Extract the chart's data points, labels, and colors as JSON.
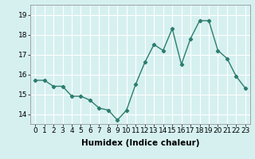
{
  "x": [
    0,
    1,
    2,
    3,
    4,
    5,
    6,
    7,
    8,
    9,
    10,
    11,
    12,
    13,
    14,
    15,
    16,
    17,
    18,
    19,
    20,
    21,
    22,
    23
  ],
  "y": [
    15.7,
    15.7,
    15.4,
    15.4,
    14.9,
    14.9,
    14.7,
    14.3,
    14.2,
    13.7,
    14.2,
    15.5,
    16.6,
    17.5,
    17.2,
    18.3,
    16.5,
    17.8,
    18.7,
    18.7,
    17.2,
    16.8,
    15.9,
    15.3
  ],
  "line_color": "#2d7d6e",
  "marker": "D",
  "marker_size": 2.2,
  "bg_color": "#d6f0f0",
  "grid_color": "#ffffff",
  "xlabel": "Humidex (Indice chaleur)",
  "ylabel": "",
  "title": "",
  "xlim": [
    -0.5,
    23.5
  ],
  "ylim": [
    13.5,
    19.5
  ],
  "yticks": [
    14,
    15,
    16,
    17,
    18,
    19
  ],
  "xticks": [
    0,
    1,
    2,
    3,
    4,
    5,
    6,
    7,
    8,
    9,
    10,
    11,
    12,
    13,
    14,
    15,
    16,
    17,
    18,
    19,
    20,
    21,
    22,
    23
  ],
  "tick_fontsize": 6.5,
  "xlabel_fontsize": 7.5,
  "line_width": 1.0
}
